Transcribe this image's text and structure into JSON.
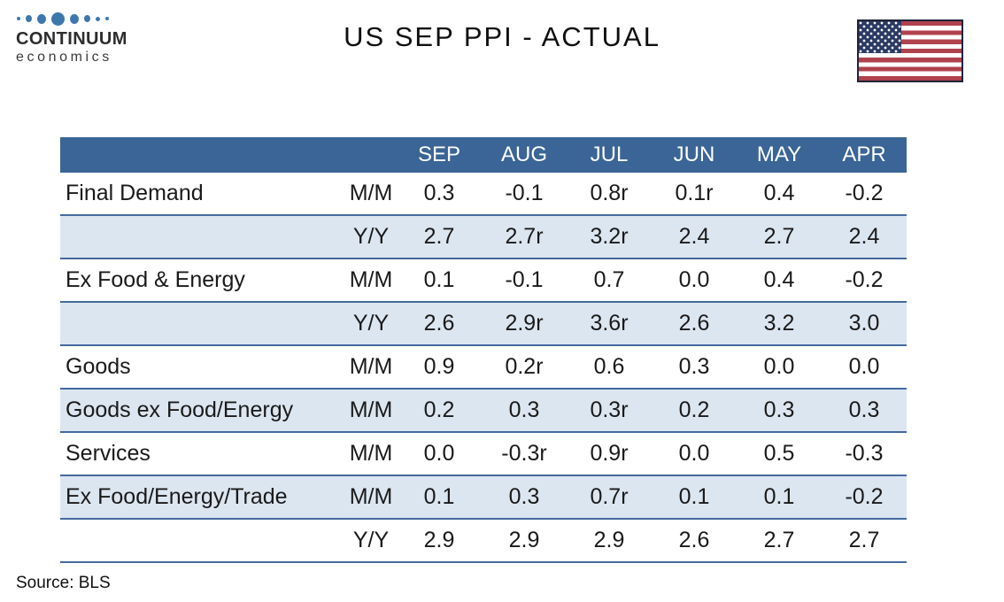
{
  "logo": {
    "name": "CONTINUUM",
    "tagline": "economics"
  },
  "title": "US SEP PPI - ACTUAL",
  "source": "Source: BLS",
  "table": {
    "columns": [
      "SEP",
      "AUG",
      "JUL",
      "JUN",
      "MAY",
      "APR"
    ],
    "rows": [
      {
        "label": "Final Demand",
        "measure": "M/M",
        "values": [
          "0.3",
          "-0.1",
          "0.8r",
          "0.1r",
          "0.4",
          "-0.2"
        ],
        "shaded": false
      },
      {
        "label": "",
        "measure": "Y/Y",
        "values": [
          "2.7",
          "2.7r",
          "3.2r",
          "2.4",
          "2.7",
          "2.4"
        ],
        "shaded": true
      },
      {
        "label": "Ex Food & Energy",
        "measure": "M/M",
        "values": [
          "0.1",
          "-0.1",
          "0.7",
          "0.0",
          "0.4",
          "-0.2"
        ],
        "shaded": false
      },
      {
        "label": "",
        "measure": "Y/Y",
        "values": [
          "2.6",
          "2.9r",
          "3.6r",
          "2.6",
          "3.2",
          "3.0"
        ],
        "shaded": true
      },
      {
        "label": "Goods",
        "measure": "M/M",
        "values": [
          "0.9",
          "0.2r",
          "0.6",
          "0.3",
          "0.0",
          "0.0"
        ],
        "shaded": false
      },
      {
        "label": "Goods ex Food/Energy",
        "measure": "M/M",
        "values": [
          "0.2",
          "0.3",
          "0.3r",
          "0.2",
          "0.3",
          "0.3"
        ],
        "shaded": true
      },
      {
        "label": "Services",
        "measure": "M/M",
        "values": [
          "0.0",
          "-0.3r",
          "0.9r",
          "0.0",
          "0.5",
          "-0.3"
        ],
        "shaded": false
      },
      {
        "label": "Ex Food/Energy/Trade",
        "measure": "M/M",
        "values": [
          "0.1",
          "0.3",
          "0.7r",
          "0.1",
          "0.1",
          "-0.2"
        ],
        "shaded": true
      },
      {
        "label": "",
        "measure": "Y/Y",
        "values": [
          "2.9",
          "2.9",
          "2.9",
          "2.6",
          "2.7",
          "2.7"
        ],
        "shaded": false
      }
    ]
  },
  "icons": {
    "logo_dots": "logo-dots-icon",
    "flag": "us-flag-icon"
  },
  "colors": {
    "header_bg": "#3a6596",
    "header_text": "#ffffff",
    "shaded_row_bg": "#dce6f1",
    "row_border": "#44699e",
    "logo_dot_blue": "#3d77ac",
    "flag_red": "#b0424e",
    "flag_canton_blue": "#2b3a64",
    "text": "#1a1a1a"
  }
}
